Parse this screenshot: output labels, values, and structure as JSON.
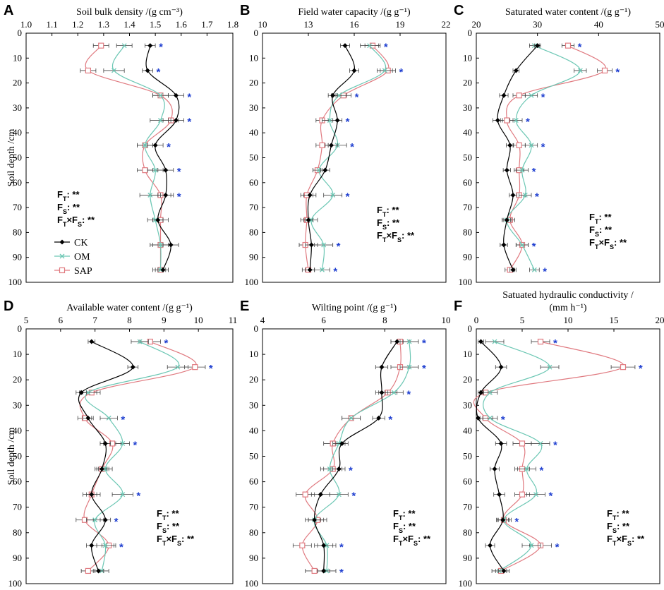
{
  "y_axis_label": "Soil depth /cm",
  "legend": [
    {
      "name": "CK",
      "color": "#000000",
      "marker": "diamond"
    },
    {
      "name": "OM",
      "color": "#6cc7b4",
      "marker": "cross"
    },
    {
      "name": "SAP",
      "color": "#e07a80",
      "marker": "square"
    }
  ],
  "chart_data": [
    {
      "panel": "A",
      "type": "line",
      "title": "Soil bulk density /(g cm⁻³)",
      "xlim": [
        1.0,
        1.8
      ],
      "xticks": [
        "1.0",
        "1.1",
        "1.2",
        "1.3",
        "1.4",
        "1.5",
        "1.6",
        "1.7",
        "1.8"
      ],
      "ylim": [
        0,
        100
      ],
      "yticks": [
        "0",
        "10",
        "20",
        "30",
        "40",
        "50",
        "60",
        "70",
        "80",
        "90",
        "100"
      ],
      "depths": [
        5,
        15,
        25,
        35,
        45,
        55,
        65,
        75,
        85,
        95
      ],
      "series": [
        {
          "name": "CK",
          "values": [
            1.48,
            1.47,
            1.58,
            1.58,
            1.5,
            1.54,
            1.54,
            1.51,
            1.56,
            1.53
          ],
          "err": [
            0.02,
            0.02,
            0.03,
            0.03,
            0.03,
            0.03,
            0.03,
            0.02,
            0.03,
            0.02
          ]
        },
        {
          "name": "OM",
          "values": [
            1.38,
            1.34,
            1.52,
            1.52,
            1.46,
            1.5,
            1.48,
            1.5,
            1.52,
            1.52
          ],
          "err": [
            0.03,
            0.04,
            0.03,
            0.04,
            0.03,
            0.03,
            0.04,
            0.03,
            0.04,
            0.03
          ]
        },
        {
          "name": "SAP",
          "values": [
            1.29,
            1.24,
            1.52,
            1.56,
            1.46,
            1.46,
            1.52,
            1.52,
            1.52,
            1.52
          ],
          "err": [
            0.03,
            0.03,
            0.03,
            0.03,
            0.03,
            0.03,
            0.04,
            0.03,
            0.03,
            0.02
          ]
        }
      ],
      "significant_depths": [
        5,
        15,
        25,
        35,
        45,
        55,
        65
      ],
      "stats": [
        "FT: **",
        "FS: **",
        "FT×FS: **"
      ],
      "legend_shown": true
    },
    {
      "panel": "B",
      "type": "line",
      "title": "Field water capacity /(g g⁻¹)",
      "xlim": [
        10,
        22
      ],
      "xticks": [
        "10",
        "13",
        "16",
        "19",
        "22"
      ],
      "ylim": [
        0,
        100
      ],
      "yticks": [
        "0",
        "10",
        "20",
        "30",
        "40",
        "50",
        "60",
        "70",
        "80",
        "90",
        "100"
      ],
      "depths": [
        5,
        15,
        25,
        35,
        45,
        55,
        65,
        75,
        85,
        95
      ],
      "series": [
        {
          "name": "CK",
          "values": [
            15.4,
            16.0,
            14.6,
            14.9,
            14.5,
            14.1,
            13.1,
            13.0,
            13.2,
            13.1
          ],
          "err": [
            0.3,
            0.3,
            0.3,
            0.3,
            0.4,
            0.3,
            0.4,
            0.3,
            0.4,
            0.3
          ]
        },
        {
          "name": "OM",
          "values": [
            17.0,
            18.0,
            15.0,
            14.4,
            14.9,
            13.7,
            14.6,
            13.2,
            14.0,
            13.9
          ],
          "err": [
            0.6,
            0.5,
            0.5,
            0.5,
            0.6,
            0.4,
            0.6,
            0.4,
            0.6,
            0.5
          ]
        },
        {
          "name": "SAP",
          "values": [
            17.2,
            18.2,
            15.3,
            13.9,
            13.9,
            13.6,
            12.9,
            12.9,
            12.8,
            13.0
          ],
          "err": [
            0.5,
            0.5,
            0.5,
            0.4,
            0.4,
            0.3,
            0.4,
            0.4,
            0.4,
            0.4
          ]
        }
      ],
      "significant_depths": [
        5,
        15,
        25,
        35,
        45,
        65,
        85,
        95
      ],
      "stats": [
        "FT: **",
        "FS: **",
        "FT×FS: **"
      ],
      "legend_shown": false
    },
    {
      "panel": "C",
      "type": "line",
      "title": "Saturated water content /(g g⁻¹)",
      "xlim": [
        20,
        50
      ],
      "xticks": [
        "20",
        "30",
        "40",
        "50"
      ],
      "ylim": [
        0,
        100
      ],
      "yticks": [
        "0",
        "10",
        "20",
        "30",
        "40",
        "50",
        "60",
        "70",
        "80",
        "90",
        "100"
      ],
      "depths": [
        5,
        15,
        25,
        35,
        45,
        55,
        65,
        75,
        85,
        95
      ],
      "series": [
        {
          "name": "CK",
          "values": [
            30.0,
            26.5,
            24.5,
            23.5,
            25.5,
            25.0,
            26.0,
            25.0,
            24.5,
            26.0
          ],
          "err": [
            0.5,
            0.5,
            0.7,
            0.8,
            0.6,
            0.6,
            0.6,
            0.6,
            0.6,
            0.5
          ]
        },
        {
          "name": "OM",
          "values": [
            29.5,
            37.0,
            29.0,
            26.5,
            29.0,
            27.5,
            28.0,
            25.0,
            27.5,
            29.5
          ],
          "err": [
            0.8,
            1.0,
            1.0,
            1.0,
            1.0,
            1.0,
            1.0,
            0.8,
            1.0,
            0.8
          ]
        },
        {
          "name": "SAP",
          "values": [
            35.0,
            41.0,
            27.0,
            25.0,
            27.0,
            27.0,
            27.0,
            25.5,
            27.5,
            25.5
          ],
          "err": [
            1.0,
            1.2,
            1.0,
            1.0,
            1.0,
            0.8,
            1.0,
            0.8,
            1.0,
            0.8
          ]
        }
      ],
      "significant_depths": [
        5,
        15,
        25,
        35,
        45,
        55,
        65,
        85,
        95
      ],
      "stats": [
        "FT: **",
        "FS: **",
        "FT×FS: **"
      ],
      "legend_shown": false
    },
    {
      "panel": "D",
      "type": "line",
      "title": "Available water content /(g g⁻¹)",
      "xlim": [
        5,
        11
      ],
      "xticks": [
        "5",
        "6",
        "7",
        "8",
        "9",
        "10",
        "11"
      ],
      "ylim": [
        0,
        100
      ],
      "yticks": [
        "0",
        "10",
        "20",
        "30",
        "40",
        "50",
        "60",
        "70",
        "80",
        "90",
        "100"
      ],
      "depths": [
        5,
        15,
        25,
        35,
        45,
        55,
        65,
        75,
        85,
        95
      ],
      "series": [
        {
          "name": "CK",
          "values": [
            6.9,
            8.1,
            6.6,
            6.8,
            7.3,
            7.2,
            6.9,
            7.3,
            6.9,
            7.1
          ],
          "err": [
            0.1,
            0.15,
            0.15,
            0.15,
            0.15,
            0.15,
            0.15,
            0.15,
            0.15,
            0.15
          ]
        },
        {
          "name": "OM",
          "values": [
            8.3,
            9.4,
            6.8,
            7.4,
            7.8,
            7.3,
            7.8,
            7.0,
            7.3,
            7.2
          ],
          "err": [
            0.25,
            0.3,
            0.25,
            0.25,
            0.2,
            0.2,
            0.3,
            0.25,
            0.25,
            0.2
          ]
        },
        {
          "name": "SAP",
          "values": [
            8.6,
            9.9,
            6.9,
            6.7,
            7.5,
            7.2,
            6.9,
            6.7,
            7.4,
            6.8
          ],
          "err": [
            0.3,
            0.3,
            0.25,
            0.2,
            0.25,
            0.2,
            0.25,
            0.25,
            0.2,
            0.2
          ]
        }
      ],
      "significant_depths": [
        5,
        15,
        35,
        45,
        65,
        75,
        85
      ],
      "stats": [
        "FT: **",
        "FS: **",
        "FT×FS: **"
      ],
      "legend_shown": false
    },
    {
      "panel": "E",
      "type": "line",
      "title": "Wilting point /(g g⁻¹)",
      "xlim": [
        4,
        10
      ],
      "xticks": [
        "4",
        "6",
        "8",
        "10"
      ],
      "ylim": [
        0,
        100
      ],
      "yticks": [
        "0",
        "10",
        "20",
        "30",
        "40",
        "50",
        "60",
        "70",
        "80",
        "90",
        "100"
      ],
      "depths": [
        5,
        15,
        25,
        35,
        45,
        55,
        65,
        75,
        85,
        95
      ],
      "series": [
        {
          "name": "CK",
          "values": [
            8.4,
            7.9,
            7.9,
            7.8,
            6.6,
            6.5,
            5.9,
            5.7,
            6.0,
            6.0
          ],
          "err": [
            0.2,
            0.2,
            0.2,
            0.2,
            0.2,
            0.2,
            0.3,
            0.2,
            0.3,
            0.2
          ]
        },
        {
          "name": "OM",
          "values": [
            8.8,
            8.8,
            8.3,
            6.9,
            6.5,
            6.2,
            6.5,
            5.7,
            6.1,
            6.1
          ],
          "err": [
            0.3,
            0.3,
            0.3,
            0.3,
            0.2,
            0.3,
            0.3,
            0.3,
            0.3,
            0.3
          ]
        },
        {
          "name": "SAP",
          "values": [
            8.5,
            8.5,
            8.1,
            6.9,
            6.3,
            6.3,
            5.4,
            5.8,
            5.3,
            5.7
          ],
          "err": [
            0.3,
            0.3,
            0.3,
            0.3,
            0.3,
            0.3,
            0.3,
            0.3,
            0.3,
            0.3
          ]
        }
      ],
      "significant_depths": [
        5,
        15,
        25,
        35,
        55,
        65,
        85,
        95
      ],
      "stats": [
        "FT: **",
        "FS: **",
        "FT×FS: **"
      ],
      "legend_shown": false
    },
    {
      "panel": "F",
      "type": "line",
      "title": "Satuated hydraulic conductivity /",
      "title_line2": "(mm h⁻¹)",
      "xlim": [
        0,
        20
      ],
      "xticks": [
        "0",
        "5",
        "10",
        "15",
        "20"
      ],
      "ylim": [
        0,
        100
      ],
      "yticks": [
        "0",
        "10",
        "20",
        "30",
        "40",
        "50",
        "60",
        "70",
        "80",
        "90",
        "100"
      ],
      "depths": [
        5,
        15,
        25,
        35,
        45,
        55,
        65,
        75,
        85,
        95
      ],
      "series": [
        {
          "name": "CK",
          "values": [
            0.5,
            2.7,
            0.5,
            0.2,
            2.7,
            2.0,
            2.5,
            2.9,
            1.5,
            3.0
          ],
          "err": [
            0.3,
            0.6,
            0.3,
            0.2,
            0.6,
            0.5,
            0.6,
            0.6,
            0.5,
            0.6
          ]
        },
        {
          "name": "OM",
          "values": [
            2.0,
            8.0,
            1.5,
            1.5,
            7.0,
            5.5,
            6.5,
            3.0,
            6.0,
            2.5
          ],
          "err": [
            1.0,
            1.0,
            0.8,
            0.8,
            1.0,
            1.0,
            1.0,
            0.8,
            1.0,
            0.8
          ]
        },
        {
          "name": "SAP",
          "values": [
            7.0,
            16.0,
            1.0,
            1.0,
            5.0,
            5.0,
            5.0,
            3.0,
            7.0,
            2.7
          ],
          "err": [
            1.0,
            1.3,
            0.6,
            0.8,
            1.0,
            0.8,
            0.8,
            0.6,
            1.2,
            0.6
          ]
        }
      ],
      "significant_depths": [
        5,
        15,
        35,
        45,
        55,
        65,
        75,
        85
      ],
      "stats": [
        "FT: **",
        "FS: **",
        "FT×FS: **"
      ],
      "legend_shown": false
    }
  ]
}
